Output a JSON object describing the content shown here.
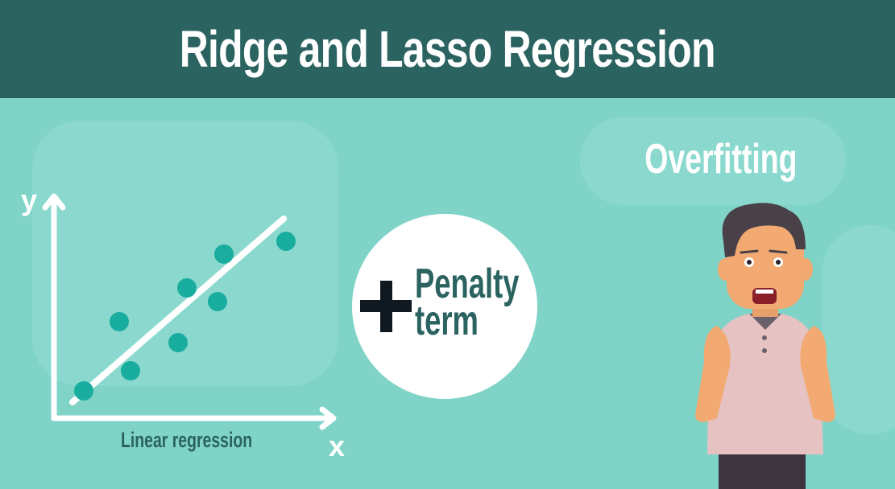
{
  "header": {
    "title": "Ridge and Lasso Regression"
  },
  "labels": {
    "overfitting": "Overfitting"
  },
  "chart": {
    "y_label": "y",
    "x_label": "x",
    "caption": "Linear regression"
  },
  "penalty": {
    "line1": "Penalty",
    "line2": "term"
  },
  "colors": {
    "header": "#2b6361",
    "background": "#7fd3c7",
    "points": "#18ad9f",
    "text_dark": "#2b6361"
  }
}
